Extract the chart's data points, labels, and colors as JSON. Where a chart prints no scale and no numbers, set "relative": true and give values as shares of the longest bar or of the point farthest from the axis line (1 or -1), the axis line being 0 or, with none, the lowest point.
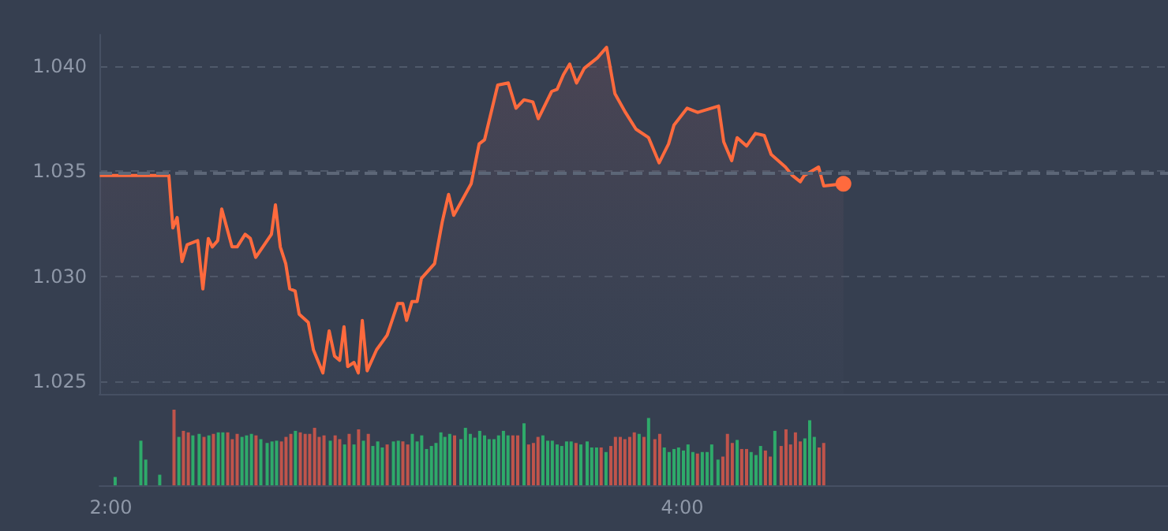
{
  "chart_data": [
    {
      "type": "area",
      "xlim": [
        1.96,
        5.7
      ],
      "ylim": [
        1.0244,
        1.0415
      ],
      "tick_labels": "y",
      "grid": "y",
      "yticks": [
        {
          "value": 1.025,
          "label": "1.025"
        },
        {
          "value": 1.03,
          "label": "1.030"
        },
        {
          "value": 1.035,
          "label": "1.035"
        },
        {
          "value": 1.04,
          "label": "1.040"
        }
      ],
      "ref_lines": [
        {
          "axis": "y",
          "value": 1.0349,
          "color": "#5c6677",
          "line_style": "dashed"
        }
      ],
      "series": [
        {
          "color": "#ff6a3d",
          "x": [
            1.961,
            2.203,
            2.217,
            2.232,
            2.249,
            2.267,
            2.304,
            2.322,
            2.341,
            2.355,
            2.374,
            2.388,
            2.424,
            2.442,
            2.47,
            2.488,
            2.507,
            2.562,
            2.576,
            2.593,
            2.612,
            2.626,
            2.645,
            2.659,
            2.691,
            2.709,
            2.742,
            2.764,
            2.783,
            2.801,
            2.816,
            2.829,
            2.851,
            2.866,
            2.88,
            2.897,
            2.93,
            2.967,
            3.004,
            3.022,
            3.035,
            3.054,
            3.072,
            3.087,
            3.133,
            3.16,
            3.182,
            3.2,
            3.261,
            3.289,
            3.308,
            3.354,
            3.391,
            3.418,
            3.446,
            3.477,
            3.496,
            3.543,
            3.562,
            3.584,
            3.606,
            3.63,
            3.657,
            3.703,
            3.735,
            3.764,
            3.801,
            3.838,
            3.882,
            3.919,
            3.952,
            3.971,
            4.017,
            4.054,
            4.127,
            4.145,
            4.173,
            4.192,
            4.225,
            4.256,
            4.287,
            4.311,
            4.361,
            4.385,
            4.413,
            4.427,
            4.477,
            4.495,
            4.564
          ],
          "values": [
            1.0348,
            1.0348,
            1.0323,
            1.0328,
            1.0307,
            1.0315,
            1.0317,
            1.0294,
            1.0318,
            1.0314,
            1.0317,
            1.0332,
            1.0314,
            1.0314,
            1.032,
            1.0318,
            1.0309,
            1.032,
            1.0334,
            1.0314,
            1.0306,
            1.0294,
            1.0293,
            1.0282,
            1.0278,
            1.0265,
            1.0254,
            1.0274,
            1.0262,
            1.026,
            1.0276,
            1.0257,
            1.0259,
            1.0254,
            1.0279,
            1.0255,
            1.0265,
            1.0272,
            1.0287,
            1.0287,
            1.0279,
            1.0288,
            1.0288,
            1.0299,
            1.0306,
            1.0326,
            1.0339,
            1.0329,
            1.0344,
            1.0363,
            1.0365,
            1.0391,
            1.0392,
            1.038,
            1.0384,
            1.0383,
            1.0375,
            1.0388,
            1.0389,
            1.0396,
            1.0401,
            1.0392,
            1.0399,
            1.0404,
            1.0409,
            1.0387,
            1.0378,
            1.037,
            1.0366,
            1.0354,
            1.0363,
            1.0372,
            1.038,
            1.0378,
            1.0381,
            1.0364,
            1.0355,
            1.0366,
            1.0362,
            1.0368,
            1.0367,
            1.0358,
            1.0352,
            1.0348,
            1.0345,
            1.0348,
            1.0352,
            1.0343,
            1.0344
          ]
        }
      ]
    },
    {
      "type": "bar",
      "relative": true,
      "xlim": [
        1.96,
        5.7
      ],
      "tick_labels": "x",
      "xticks": [
        {
          "value": 2,
          "label": "2:00"
        },
        {
          "value": 4,
          "label": "4:00"
        }
      ],
      "series": [
        {
          "x": [
            2.015,
            2.105,
            2.122,
            2.171,
            2.221,
            2.238,
            2.254,
            2.271,
            2.287,
            2.309,
            2.326,
            2.343,
            2.359,
            2.376,
            2.392,
            2.409,
            2.425,
            2.442,
            2.459,
            2.475,
            2.492,
            2.508,
            2.525,
            2.547,
            2.564,
            2.58,
            2.597,
            2.613,
            2.63,
            2.646,
            2.663,
            2.68,
            2.696,
            2.713,
            2.729,
            2.746,
            2.768,
            2.785,
            2.801,
            2.818,
            2.834,
            2.851,
            2.867,
            2.884,
            2.901,
            2.917,
            2.934,
            2.95,
            2.967,
            2.989,
            3.006,
            3.022,
            3.039,
            3.055,
            3.072,
            3.088,
            3.105,
            3.122,
            3.138,
            3.155,
            3.169,
            3.186,
            3.203,
            3.225,
            3.241,
            3.258,
            3.274,
            3.291,
            3.308,
            3.324,
            3.341,
            3.357,
            3.374,
            3.39,
            3.407,
            3.424,
            3.446,
            3.462,
            3.479,
            3.495,
            3.512,
            3.529,
            3.545,
            3.562,
            3.578,
            3.595,
            3.611,
            3.628,
            3.645,
            3.667,
            3.683,
            3.7,
            3.716,
            3.733,
            3.75,
            3.766,
            3.783,
            3.799,
            3.816,
            3.832,
            3.849,
            3.866,
            3.882,
            3.904,
            3.921,
            3.937,
            3.954,
            3.971,
            3.987,
            4.004,
            4.02,
            4.037,
            4.053,
            4.07,
            4.087,
            4.103,
            4.125,
            4.142,
            4.158,
            4.175,
            4.192,
            4.208,
            4.225,
            4.241,
            4.258,
            4.274,
            4.291,
            4.308,
            4.324,
            4.346,
            4.363,
            4.379,
            4.396,
            4.413,
            4.429,
            4.446,
            4.462,
            4.479,
            4.495
          ],
          "values": [
            0.11,
            0.59,
            0.34,
            0.14,
            1.0,
            0.64,
            0.72,
            0.7,
            0.66,
            0.68,
            0.64,
            0.66,
            0.68,
            0.7,
            0.7,
            0.7,
            0.61,
            0.68,
            0.64,
            0.66,
            0.68,
            0.66,
            0.61,
            0.56,
            0.58,
            0.59,
            0.58,
            0.64,
            0.68,
            0.72,
            0.7,
            0.68,
            0.68,
            0.76,
            0.64,
            0.66,
            0.59,
            0.66,
            0.61,
            0.54,
            0.68,
            0.54,
            0.74,
            0.59,
            0.68,
            0.52,
            0.58,
            0.5,
            0.54,
            0.58,
            0.59,
            0.58,
            0.54,
            0.68,
            0.58,
            0.66,
            0.48,
            0.52,
            0.56,
            0.7,
            0.64,
            0.68,
            0.66,
            0.61,
            0.76,
            0.68,
            0.63,
            0.72,
            0.66,
            0.61,
            0.61,
            0.66,
            0.72,
            0.66,
            0.66,
            0.66,
            0.82,
            0.54,
            0.56,
            0.64,
            0.66,
            0.59,
            0.59,
            0.54,
            0.52,
            0.58,
            0.58,
            0.56,
            0.54,
            0.58,
            0.5,
            0.5,
            0.5,
            0.44,
            0.52,
            0.64,
            0.64,
            0.61,
            0.64,
            0.7,
            0.68,
            0.64,
            0.89,
            0.61,
            0.68,
            0.5,
            0.44,
            0.48,
            0.5,
            0.46,
            0.54,
            0.44,
            0.42,
            0.44,
            0.44,
            0.54,
            0.34,
            0.38,
            0.68,
            0.56,
            0.6,
            0.48,
            0.48,
            0.44,
            0.4,
            0.52,
            0.46,
            0.38,
            0.72,
            0.52,
            0.74,
            0.54,
            0.7,
            0.58,
            0.62,
            0.86,
            0.64,
            0.5,
            0.56
          ],
          "colors": [
            "#2eaa6a",
            "#2eaa6a",
            "#2eaa6a",
            "#2eaa6a",
            "#c0544b",
            "#2eaa6a",
            "#c0544b",
            "#c0544b",
            "#2eaa6a",
            "#2eaa6a",
            "#c0544b",
            "#2eaa6a",
            "#c0544b",
            "#2eaa6a",
            "#2eaa6a",
            "#c0544b",
            "#c0544b",
            "#c0544b",
            "#2eaa6a",
            "#2eaa6a",
            "#2eaa6a",
            "#c0544b",
            "#2eaa6a",
            "#2eaa6a",
            "#2eaa6a",
            "#2eaa6a",
            "#c0544b",
            "#c0544b",
            "#c0544b",
            "#2eaa6a",
            "#c0544b",
            "#c0544b",
            "#c0544b",
            "#c0544b",
            "#c0544b",
            "#c0544b",
            "#2eaa6a",
            "#c0544b",
            "#c0544b",
            "#2eaa6a",
            "#c0544b",
            "#2eaa6a",
            "#c0544b",
            "#2eaa6a",
            "#c0544b",
            "#2eaa6a",
            "#2eaa6a",
            "#2eaa6a",
            "#c0544b",
            "#2eaa6a",
            "#2eaa6a",
            "#c0544b",
            "#c0544b",
            "#2eaa6a",
            "#2eaa6a",
            "#2eaa6a",
            "#2eaa6a",
            "#2eaa6a",
            "#2eaa6a",
            "#2eaa6a",
            "#2eaa6a",
            "#2eaa6a",
            "#c0544b",
            "#2eaa6a",
            "#2eaa6a",
            "#2eaa6a",
            "#2eaa6a",
            "#2eaa6a",
            "#2eaa6a",
            "#2eaa6a",
            "#2eaa6a",
            "#2eaa6a",
            "#2eaa6a",
            "#2eaa6a",
            "#c0544b",
            "#c0544b",
            "#2eaa6a",
            "#c0544b",
            "#c0544b",
            "#c0544b",
            "#2eaa6a",
            "#2eaa6a",
            "#2eaa6a",
            "#2eaa6a",
            "#2eaa6a",
            "#2eaa6a",
            "#2eaa6a",
            "#c0544b",
            "#2eaa6a",
            "#2eaa6a",
            "#2eaa6a",
            "#2eaa6a",
            "#c0544b",
            "#2eaa6a",
            "#c0544b",
            "#c0544b",
            "#c0544b",
            "#c0544b",
            "#c0544b",
            "#c0544b",
            "#2eaa6a",
            "#c0544b",
            "#2eaa6a",
            "#c0544b",
            "#c0544b",
            "#2eaa6a",
            "#2eaa6a",
            "#2eaa6a",
            "#2eaa6a",
            "#2eaa6a",
            "#2eaa6a",
            "#2eaa6a",
            "#c0544b",
            "#2eaa6a",
            "#2eaa6a",
            "#2eaa6a",
            "#2eaa6a",
            "#c0544b",
            "#c0544b",
            "#c0544b",
            "#2eaa6a",
            "#c0544b",
            "#c0544b",
            "#2eaa6a",
            "#2eaa6a",
            "#2eaa6a",
            "#c0544b",
            "#c0544b",
            "#2eaa6a",
            "#c0544b",
            "#c0544b",
            "#c0544b",
            "#c0544b",
            "#c0544b",
            "#2eaa6a",
            "#2eaa6a",
            "#2eaa6a",
            "#c0544b",
            "#c0544b"
          ]
        }
      ]
    }
  ]
}
